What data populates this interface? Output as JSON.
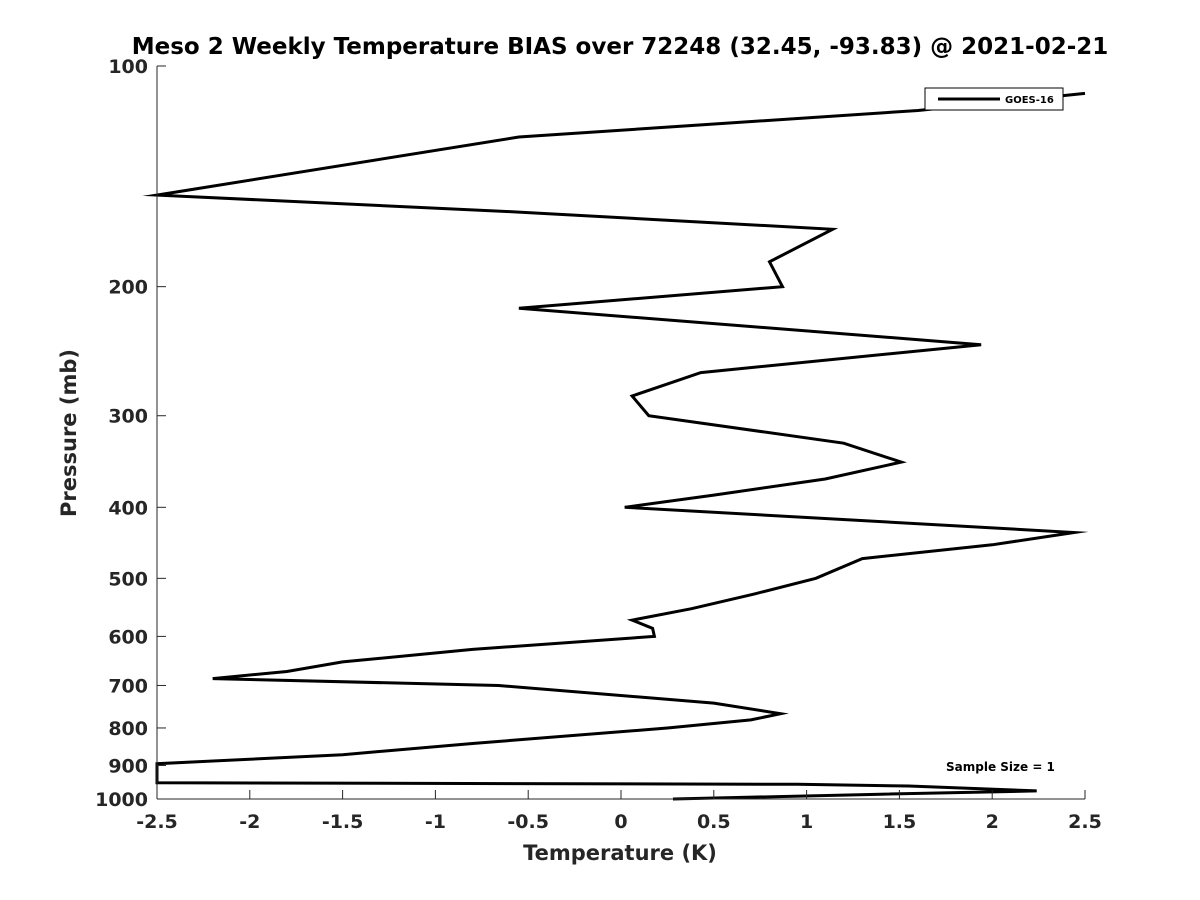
{
  "chart_data": {
    "type": "line",
    "title": "Meso 2 Weekly Temperature BIAS over 72248 (32.45, -93.83) @ 2021-02-21",
    "xlabel": "Temperature (K)",
    "ylabel": "Pressure (mb)",
    "xlim": [
      -2.5,
      2.5
    ],
    "ylim": [
      1000,
      100
    ],
    "y_scale": "log",
    "y_reversed": true,
    "xticks": [
      -2.5,
      -2,
      -1.5,
      -1,
      -0.5,
      0,
      0.5,
      1,
      1.5,
      2,
      2.5
    ],
    "xtick_labels": [
      "-2.5",
      "-2",
      "-1.5",
      "-1",
      "-0.5",
      "0",
      "0.5",
      "1",
      "1.5",
      "2",
      "2.5"
    ],
    "yticks": [
      100,
      200,
      300,
      400,
      500,
      600,
      700,
      800,
      900,
      1000
    ],
    "ytick_labels": [
      "100",
      "200",
      "300",
      "400",
      "500",
      "600",
      "700",
      "800",
      "900",
      "1000"
    ],
    "legend_position": "top-right",
    "annotation": "Sample Size = 1",
    "grid": false,
    "series": [
      {
        "name": "GOES-16",
        "color": "#000000",
        "x": [
          2.5,
          1.6,
          -0.55,
          -2.5,
          -0.6,
          1.14,
          0.8,
          0.87,
          -0.55,
          1.94,
          0.43,
          0.06,
          0.15,
          1.2,
          1.51,
          1.1,
          0.5,
          0.02,
          2.44,
          2.0,
          1.3,
          1.05,
          0.72,
          0.38,
          0.06,
          0.17,
          0.18,
          -0.8,
          -1.5,
          -1.8,
          -2.2,
          -0.66,
          0.5,
          0.86,
          0.7,
          0.25,
          -0.8,
          -1.5,
          -2.5,
          -2.5,
          0.95,
          1.55,
          2.24,
          1.4,
          0.28
        ],
        "y": [
          109,
          115,
          125,
          150,
          158,
          167,
          185,
          200,
          214,
          240,
          262,
          282,
          300,
          327,
          347,
          366,
          385,
          400,
          433,
          450,
          470,
          500,
          525,
          550,
          570,
          585,
          600,
          625,
          650,
          670,
          685,
          700,
          740,
          765,
          780,
          800,
          840,
          870,
          895,
          950,
          955,
          960,
          975,
          985,
          1000
        ]
      }
    ]
  }
}
